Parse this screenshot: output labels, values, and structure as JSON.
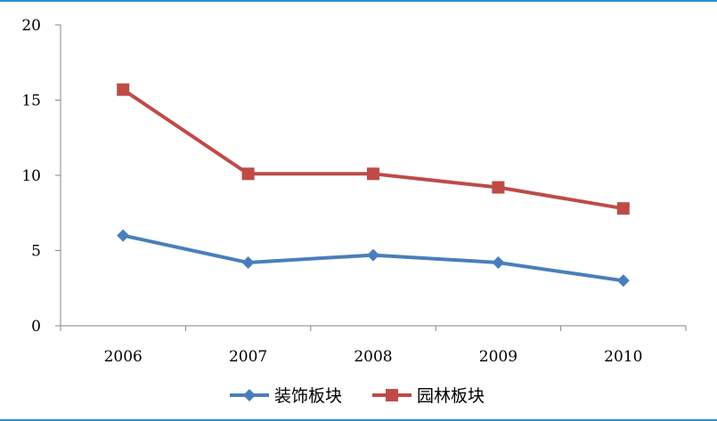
{
  "chart_data": {
    "type": "line",
    "title": "",
    "xlabel": "",
    "ylabel": "",
    "categories": [
      "2006",
      "2007",
      "2008",
      "2009",
      "2010"
    ],
    "ylim": [
      0,
      20
    ],
    "yticks": [
      0,
      5,
      10,
      15,
      20
    ],
    "grid": false,
    "legend_position": "bottom",
    "series": [
      {
        "name": "装饰板块",
        "values": [
          6.0,
          4.2,
          4.7,
          4.2,
          3.0
        ],
        "color": "#4a7ebb",
        "marker": "diamond"
      },
      {
        "name": "园林板块",
        "values": [
          15.7,
          10.1,
          10.1,
          9.2,
          7.8
        ],
        "color": "#be4b48",
        "marker": "square"
      }
    ]
  }
}
